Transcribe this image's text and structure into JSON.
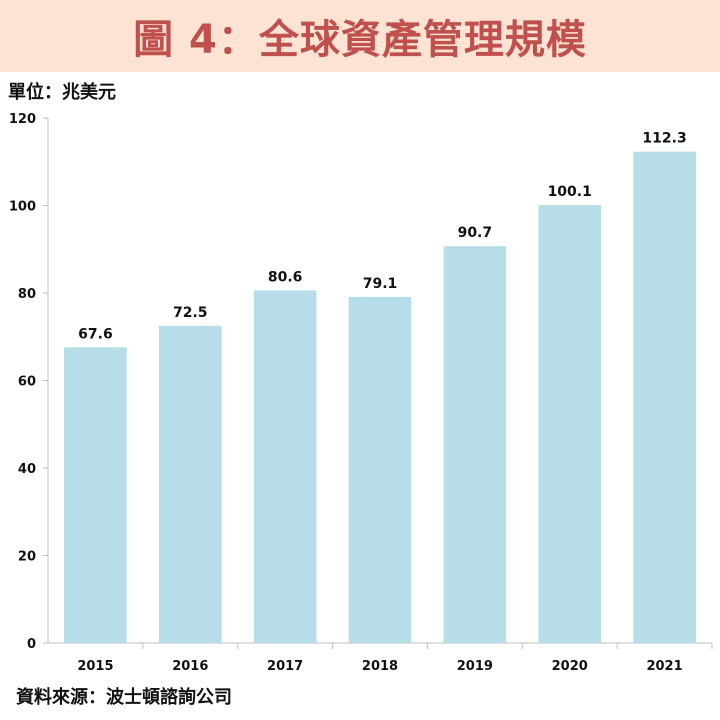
{
  "header": {
    "title": "圖 4：全球資產管理規模",
    "band_color": "#fde3d3",
    "title_color": "#c0504d"
  },
  "unit_label": "單位：兆美元",
  "source_label": "資料來源：波士頓諮詢公司",
  "chart_data": {
    "type": "bar",
    "categories": [
      "2015",
      "2016",
      "2017",
      "2018",
      "2019",
      "2020",
      "2021"
    ],
    "values": [
      67.6,
      72.5,
      80.6,
      79.1,
      90.7,
      100.1,
      112.3
    ],
    "value_labels": [
      "67.6",
      "72.5",
      "80.6",
      "79.1",
      "90.7",
      "100.1",
      "112.3"
    ],
    "yticks": [
      "0",
      "20",
      "40",
      "60",
      "80",
      "100",
      "120"
    ],
    "ylim": [
      0,
      120
    ],
    "bar_color": "#b7dde8",
    "grid": false,
    "legend": "none"
  }
}
